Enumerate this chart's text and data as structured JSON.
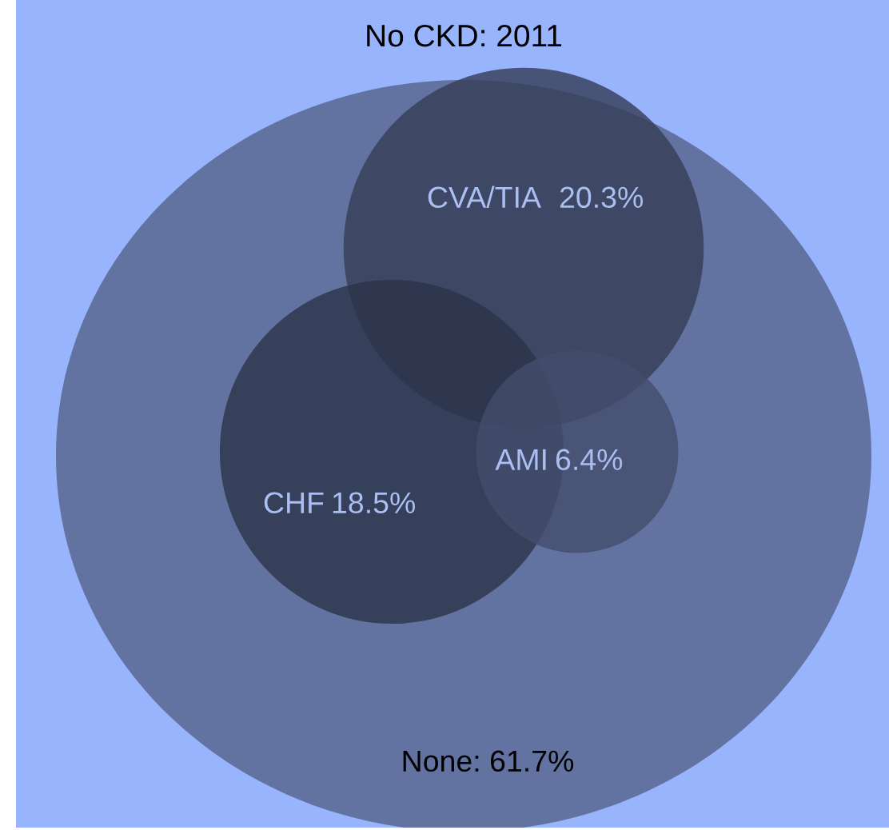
{
  "chart_data": {
    "type": "other",
    "title": "No CKD: 2011",
    "categories": [
      "CVA/TIA",
      "CHF",
      "AMI"
    ],
    "values": [
      20.3,
      18.5,
      6.4
    ],
    "value_labels": [
      "20.3%",
      "18.5%",
      "6.4%"
    ],
    "colors": [
      "#343c55",
      "#2c3348",
      "#434c6b"
    ],
    "annotations": [
      "None: 61.7%"
    ]
  }
}
